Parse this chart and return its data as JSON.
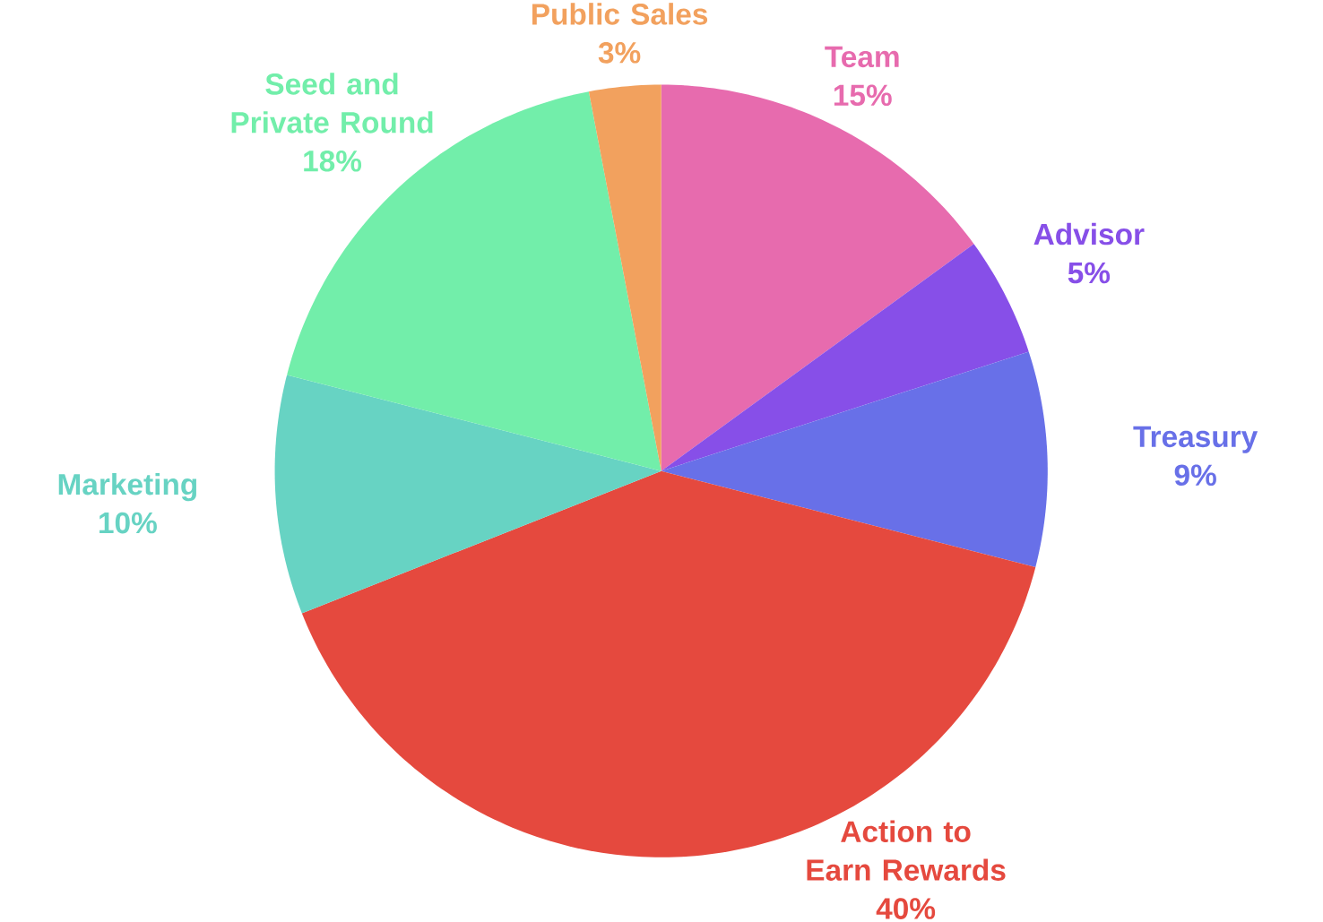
{
  "chart_data": {
    "type": "pie",
    "categories": [
      "Team",
      "Advisor",
      "Treasury",
      "Action to Earn Rewards",
      "Marketing",
      "Seed and Private Round",
      "Public Sales"
    ],
    "values": [
      15,
      5,
      9,
      40,
      10,
      18,
      3
    ],
    "value_labels": [
      "15%",
      "5%",
      "9%",
      "40%",
      "10%",
      "18%",
      "3%"
    ],
    "colors": [
      "#e76bae",
      "#874fe8",
      "#6870e8",
      "#e5493e",
      "#67d3c3",
      "#72eeaa",
      "#f2a15e"
    ]
  }
}
